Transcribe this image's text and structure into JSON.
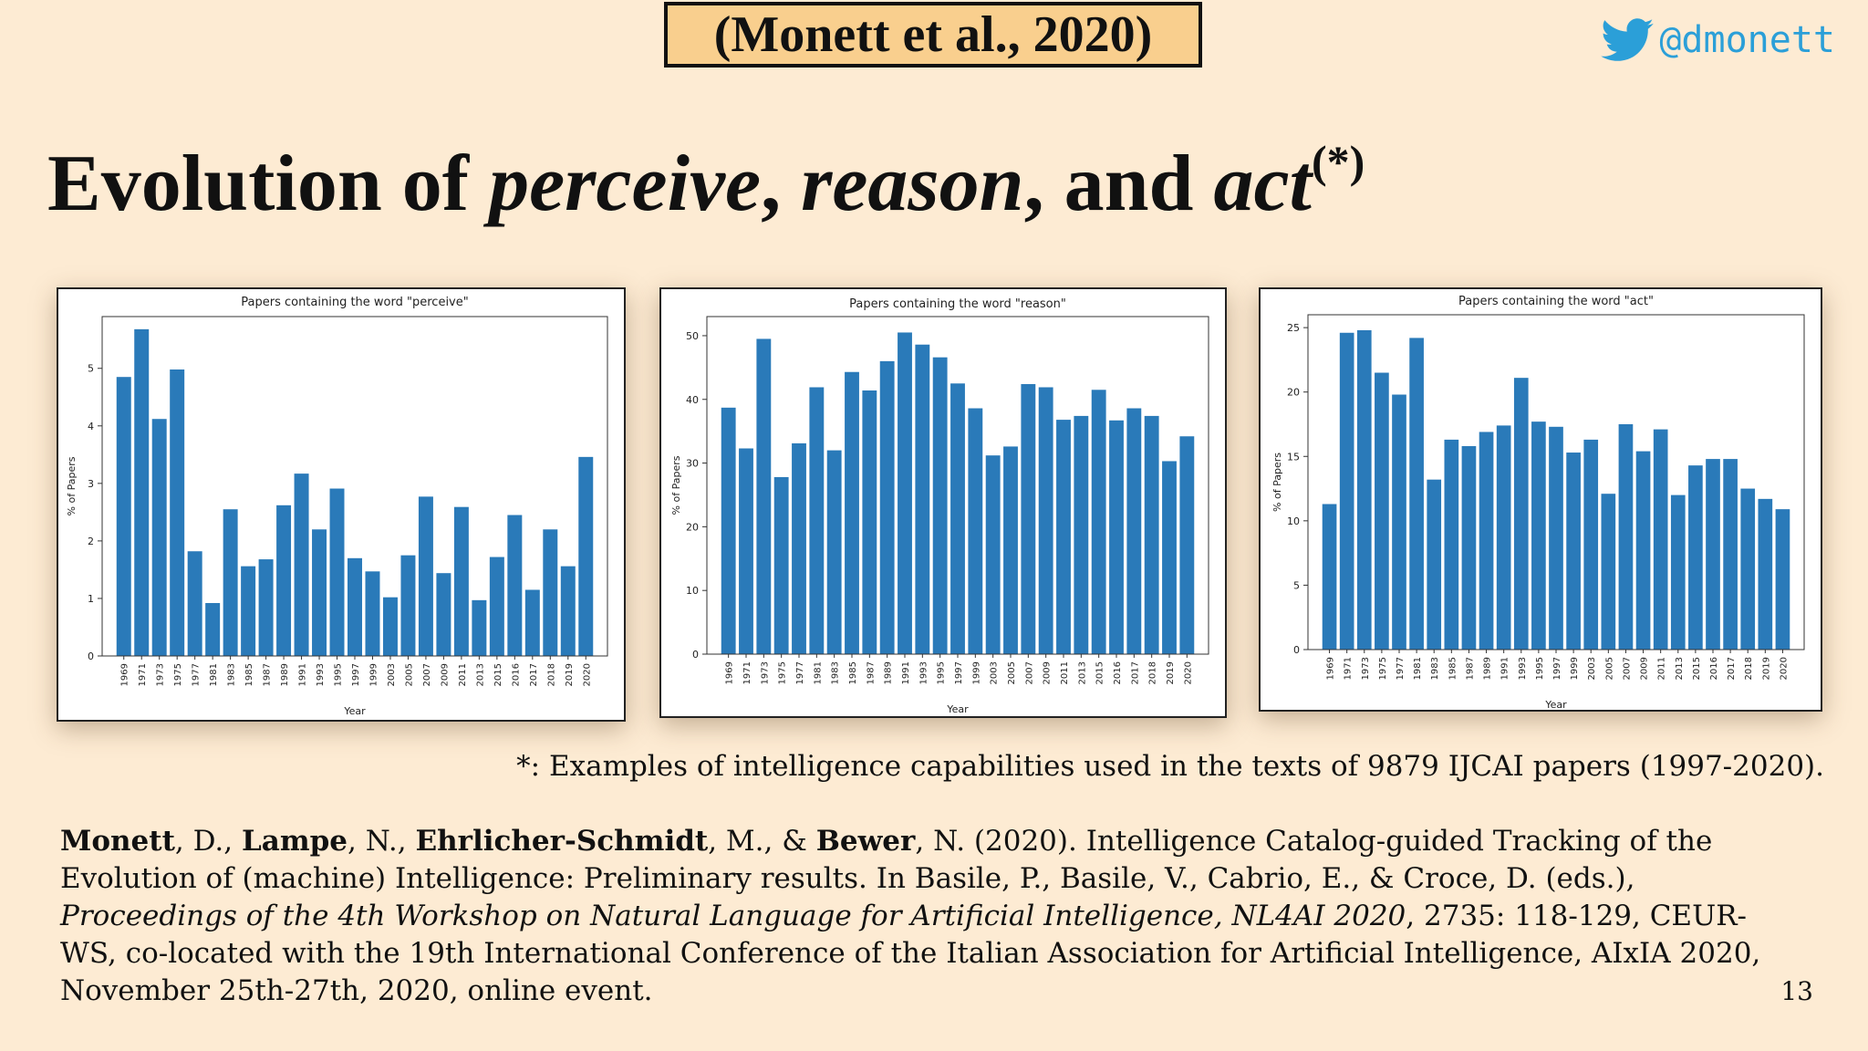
{
  "header": {
    "citation": "(Monett et al., 2020)",
    "twitter_handle": "@dmonett"
  },
  "title": {
    "prefix": "Evolution of ",
    "word1": "perceive",
    "sep1": ", ",
    "word2": "reason",
    "sep2": ", and ",
    "word3": "act",
    "footnote_mark": "(*)"
  },
  "note": "*: Examples of intelligence capabilities used in the texts of 9879 IJCAI papers (1997-2020).",
  "reference": {
    "a1": "Monett",
    "a1r": ", D., ",
    "a2": "Lampe",
    "a2r": ", N., ",
    "a3": "Ehrlicher-Schmidt",
    "a3r": ", M., & ",
    "a4": "Bewer",
    "a4r": ", N. (2020). Intelligence Catalog-guided Tracking of the Evolution of (machine) Intelligence: Preliminary results. In Basile, P., Basile, V., Cabrio, E., & Croce, D. (eds.), ",
    "venue": "Proceedings of the 4th Workshop on Natural Language for Artificial Intelligence, NL4AI 2020",
    "rest": ", 2735: 118-129, CEUR-WS, co-located with the 19th International Conference of the Italian Association for Artificial Intelligence, AIxIA 2020, November 25th-27th, 2020, online event."
  },
  "page_number": "13",
  "colors": {
    "bar": "#2a7ab9",
    "twitter": "#2b9fd8",
    "citebox": "#f9cf8e",
    "background": "#fdebd3"
  },
  "icons": {
    "twitter": "twitter-bird-icon"
  },
  "chart_data": [
    {
      "type": "bar",
      "title": "Papers containing the word \"perceive\"",
      "xlabel": "Year",
      "ylabel": "% of Papers",
      "ylim": [
        0,
        5.9
      ],
      "yticks": [
        0,
        1,
        2,
        3,
        4,
        5
      ],
      "categories": [
        "1969",
        "1971",
        "1973",
        "1975",
        "1977",
        "1981",
        "1983",
        "1985",
        "1987",
        "1989",
        "1991",
        "1993",
        "1995",
        "1997",
        "1999",
        "2003",
        "2005",
        "2007",
        "2009",
        "2011",
        "2013",
        "2015",
        "2016",
        "2017",
        "2018",
        "2019",
        "2020"
      ],
      "values": [
        4.85,
        5.68,
        4.12,
        4.98,
        1.82,
        0.92,
        2.55,
        1.56,
        1.68,
        2.62,
        3.17,
        2.2,
        2.91,
        1.7,
        1.47,
        1.02,
        1.75,
        2.77,
        1.44,
        2.59,
        0.97,
        1.72,
        2.45,
        1.15,
        2.2,
        1.56,
        3.46
      ],
      "grid": false
    },
    {
      "type": "bar",
      "title": "Papers containing the word \"reason\"",
      "xlabel": "Year",
      "ylabel": "% of Papers",
      "ylim": [
        0,
        53
      ],
      "yticks": [
        0,
        10,
        20,
        30,
        40,
        50
      ],
      "categories": [
        "1969",
        "1971",
        "1973",
        "1975",
        "1977",
        "1981",
        "1983",
        "1985",
        "1987",
        "1989",
        "1991",
        "1993",
        "1995",
        "1997",
        "1999",
        "2003",
        "2005",
        "2007",
        "2009",
        "2011",
        "2013",
        "2015",
        "2016",
        "2017",
        "2018",
        "2019",
        "2020"
      ],
      "values": [
        38.7,
        32.3,
        49.5,
        27.8,
        33.1,
        41.9,
        32.0,
        44.3,
        41.4,
        46.0,
        50.5,
        48.6,
        46.6,
        42.5,
        38.6,
        31.2,
        32.6,
        42.4,
        41.9,
        36.8,
        37.4,
        41.5,
        36.7,
        38.6,
        37.4,
        30.3,
        34.2
      ],
      "grid": false
    },
    {
      "type": "bar",
      "title": "Papers containing the word \"act\"",
      "xlabel": "Year",
      "ylabel": "% of Papers",
      "ylim": [
        0,
        26
      ],
      "yticks": [
        0,
        5,
        10,
        15,
        20,
        25
      ],
      "categories": [
        "1969",
        "1971",
        "1973",
        "1975",
        "1977",
        "1981",
        "1983",
        "1985",
        "1987",
        "1989",
        "1991",
        "1993",
        "1995",
        "1997",
        "1999",
        "2003",
        "2005",
        "2007",
        "2009",
        "2011",
        "2013",
        "2015",
        "2016",
        "2017",
        "2018",
        "2019",
        "2020"
      ],
      "values": [
        11.3,
        24.6,
        24.8,
        21.5,
        19.8,
        24.2,
        13.2,
        16.3,
        15.8,
        16.9,
        17.4,
        21.1,
        17.7,
        17.3,
        15.3,
        16.3,
        12.1,
        17.5,
        15.4,
        17.1,
        12.0,
        14.3,
        14.8,
        14.8,
        12.5,
        11.7,
        10.9
      ],
      "grid": false
    }
  ]
}
